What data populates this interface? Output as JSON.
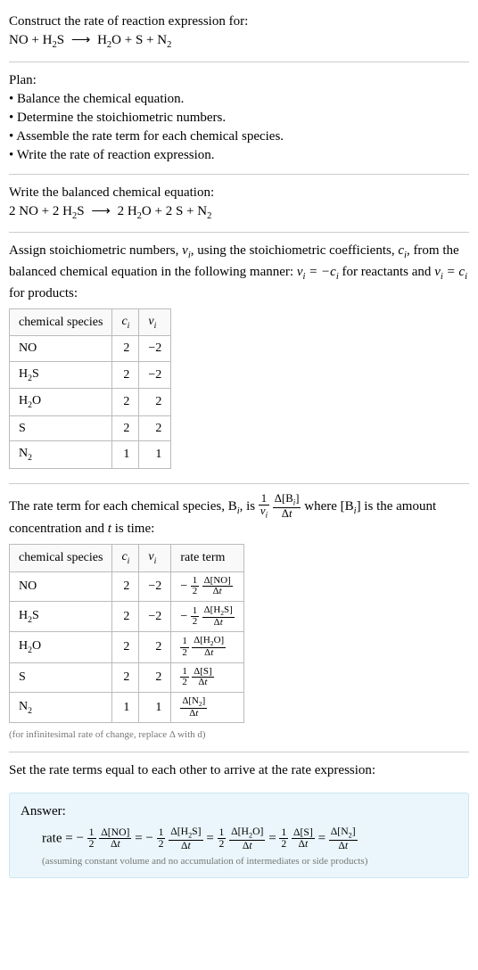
{
  "title": "Construct the rate of reaction expression for:",
  "unbalanced": {
    "lhs": "NO + H₂S",
    "rhs": "H₂O + S + N₂"
  },
  "plan": {
    "heading": "Plan:",
    "items": [
      "Balance the chemical equation.",
      "Determine the stoichiometric numbers.",
      "Assemble the rate term for each chemical species.",
      "Write the rate of reaction expression."
    ]
  },
  "balanced": {
    "heading": "Write the balanced chemical equation:",
    "lhs": "2 NO + 2 H₂S",
    "rhs": "2 H₂O + 2 S + N₂"
  },
  "stoich_text": {
    "part1": "Assign stoichiometric numbers, ",
    "nu_i": "ν_i",
    "part2": ", using the stoichiometric coefficients, ",
    "c_i": "c_i",
    "part3": ", from the balanced chemical equation in the following manner: ",
    "rel_reactants": "ν_i = −c_i",
    "part4": " for reactants and ",
    "rel_products": "ν_i = c_i",
    "part5": " for products:"
  },
  "table1": {
    "headers": [
      "chemical species",
      "c_i",
      "ν_i"
    ],
    "rows": [
      {
        "sp_html": "NO",
        "c": "2",
        "nu": "−2"
      },
      {
        "sp_html": "H<sub>2</sub>S",
        "c": "2",
        "nu": "−2"
      },
      {
        "sp_html": "H<sub>2</sub>O",
        "c": "2",
        "nu": "2"
      },
      {
        "sp_html": "S",
        "c": "2",
        "nu": "2"
      },
      {
        "sp_html": "N<sub>2</sub>",
        "c": "1",
        "nu": "1"
      }
    ]
  },
  "rate_term_text": {
    "part1": "The rate term for each chemical species, B",
    "sub_i": "i",
    "part2": ", is ",
    "frac1_num": "1",
    "frac1_den_html": "<span class=\"italic\">ν<sub>i</sub></span>",
    "frac2_num_html": "Δ[B<sub><span class=\"italic\">i</span></sub>]",
    "frac2_den_html": "Δ<span class=\"italic\">t</span>",
    "part3": " where [B",
    "part4": "] is the amount concentration and ",
    "t": "t",
    "part5": " is time:"
  },
  "table2": {
    "headers": [
      "chemical species",
      "c_i",
      "ν_i",
      "rate term"
    ],
    "rows": [
      {
        "sp_html": "NO",
        "c": "2",
        "nu": "−2",
        "sign": "−",
        "coef_num": "1",
        "coef_den": "2",
        "conc": "Δ[NO]"
      },
      {
        "sp_html": "H<sub>2</sub>S",
        "c": "2",
        "nu": "−2",
        "sign": "−",
        "coef_num": "1",
        "coef_den": "2",
        "conc": "Δ[H<sub>2</sub>S]"
      },
      {
        "sp_html": "H<sub>2</sub>O",
        "c": "2",
        "nu": "2",
        "sign": "",
        "coef_num": "1",
        "coef_den": "2",
        "conc": "Δ[H<sub>2</sub>O]"
      },
      {
        "sp_html": "S",
        "c": "2",
        "nu": "2",
        "sign": "",
        "coef_num": "1",
        "coef_den": "2",
        "conc": "Δ[S]"
      },
      {
        "sp_html": "N<sub>2</sub>",
        "c": "1",
        "nu": "1",
        "sign": "",
        "coef_num": "",
        "coef_den": "",
        "conc": "Δ[N<sub>2</sub>]"
      }
    ],
    "dt_html": "Δ<span class=\"italic\">t</span>"
  },
  "infinitesimal_note": "(for infinitesimal rate of change, replace Δ with d)",
  "set_equal_text": "Set the rate terms equal to each other to arrive at the rate expression:",
  "answer": {
    "label": "Answer:",
    "rate_label": "rate = ",
    "terms": [
      {
        "sign": "−",
        "coef_num": "1",
        "coef_den": "2",
        "conc": "Δ[NO]"
      },
      {
        "sign": "−",
        "coef_num": "1",
        "coef_den": "2",
        "conc": "Δ[H<sub>2</sub>S]"
      },
      {
        "sign": "",
        "coef_num": "1",
        "coef_den": "2",
        "conc": "Δ[H<sub>2</sub>O]"
      },
      {
        "sign": "",
        "coef_num": "1",
        "coef_den": "2",
        "conc": "Δ[S]"
      },
      {
        "sign": "",
        "coef_num": "",
        "coef_den": "",
        "conc": "Δ[N<sub>2</sub>]"
      }
    ],
    "dt_html": "Δ<span class=\"italic\">t</span>",
    "assume": "(assuming constant volume and no accumulation of intermediates or side products)"
  }
}
